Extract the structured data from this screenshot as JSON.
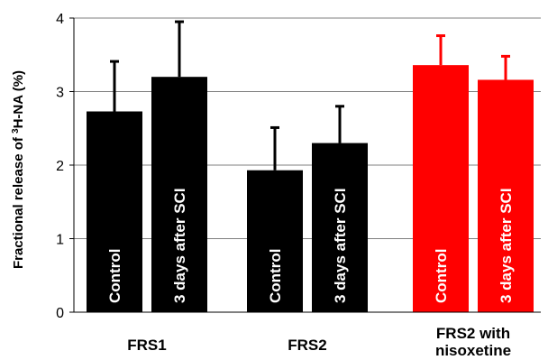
{
  "chart_data": {
    "type": "bar",
    "ylabel_prefix": "Fractional release of ",
    "ylabel_sup": "3",
    "ylabel_suffix": "H-NA (%)",
    "ylim": [
      0,
      4
    ],
    "yticks": [
      "0",
      "1",
      "2",
      "3",
      "4"
    ],
    "grid": true,
    "groups": [
      {
        "label_lines": [
          "FRS1"
        ],
        "bars": [
          {
            "label": "Control",
            "value": 2.73,
            "error": 0.68,
            "color": "#000000"
          },
          {
            "label": "3 days after SCI",
            "value": 3.2,
            "error": 0.75,
            "color": "#000000"
          }
        ]
      },
      {
        "label_lines": [
          "FRS2"
        ],
        "bars": [
          {
            "label": "Control",
            "value": 1.93,
            "error": 0.58,
            "color": "#000000"
          },
          {
            "label": "3 days after SCI",
            "value": 2.3,
            "error": 0.5,
            "color": "#000000"
          }
        ]
      },
      {
        "label_lines": [
          "FRS2 with",
          "nisoxetine"
        ],
        "bars": [
          {
            "label": "Control",
            "value": 3.36,
            "error": 0.4,
            "color": "#ff0000"
          },
          {
            "label": "3 days after SCI",
            "value": 3.16,
            "error": 0.32,
            "color": "#ff0000"
          }
        ]
      }
    ]
  }
}
